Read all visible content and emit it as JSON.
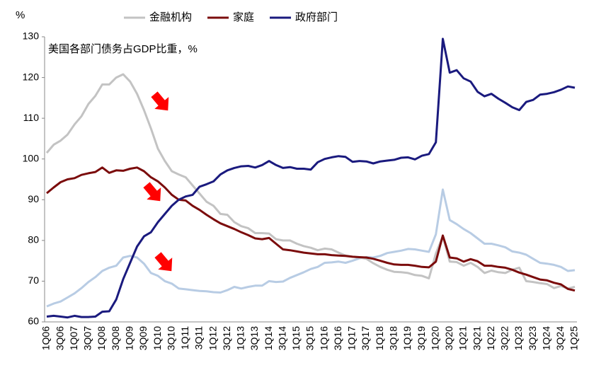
{
  "chart_data": {
    "type": "line",
    "y_label": "%",
    "annotation": "美国各部门债务占GDP比重，%",
    "legend": "top",
    "ylim": [
      60,
      130
    ],
    "yticks": [
      60,
      70,
      80,
      90,
      100,
      110,
      120,
      130
    ],
    "categories": [
      "1Q06",
      null,
      "3Q06",
      null,
      "1Q07",
      null,
      "3Q07",
      null,
      "1Q08",
      null,
      "3Q08",
      null,
      "1Q09",
      null,
      "3Q09",
      null,
      "1Q10",
      null,
      "3Q10",
      null,
      "1Q11",
      null,
      "3Q11",
      null,
      "1Q12",
      null,
      "3Q12",
      null,
      "1Q13",
      null,
      "3Q13",
      null,
      "1Q14",
      null,
      "3Q14",
      null,
      "1Q15",
      null,
      "3Q15",
      null,
      "1Q16",
      null,
      "3Q16",
      null,
      "1Q17",
      null,
      "3Q17",
      null,
      "1Q18",
      null,
      "3Q18",
      null,
      "1Q19",
      null,
      "3Q19",
      null,
      "1Q20",
      null,
      "3Q20",
      null,
      "1Q21",
      null,
      "3Q21",
      null,
      "1Q22",
      null,
      "3Q22",
      null,
      "1Q23",
      null,
      "3Q23",
      null,
      "1Q24",
      null,
      "3Q24",
      null,
      "1Q25"
    ],
    "series": [
      {
        "color": "#b8cce4",
        "values": [
          63.8,
          64.5,
          65,
          66,
          67,
          68.3,
          69.8,
          71,
          72.5,
          73.3,
          73.8,
          75.8,
          76.2,
          75.8,
          74.3,
          72,
          71.3,
          70,
          69.4,
          68.2,
          68,
          67.8,
          67.6,
          67.5,
          67.3,
          67.2,
          67.8,
          68.6,
          68.2,
          68.6,
          68.9,
          68.9,
          70,
          69.8,
          69.9,
          70.8,
          71.5,
          72.2,
          73,
          73.5,
          74.5,
          74.6,
          74.8,
          74.5,
          75,
          75.6,
          75.9,
          75.8,
          76.2,
          76.9,
          77.2,
          77.5,
          77.9,
          77.8,
          77.5,
          77.2,
          81.5,
          92.5,
          85,
          84,
          82.8,
          81.8,
          80.5,
          79.2,
          79.2,
          78.8,
          78.3,
          77.3,
          77,
          76.5,
          75.5,
          74.5,
          74.3,
          74,
          73.5,
          72.5,
          72.7
        ]
      },
      {
        "name": "金融机构",
        "color": "#c3c3c3",
        "values": [
          101.5,
          103.5,
          104.5,
          106,
          108.5,
          110.5,
          113.5,
          115.5,
          118.3,
          118.3,
          120,
          120.8,
          119,
          116,
          112,
          107.5,
          102.5,
          99.5,
          97,
          96.2,
          95.5,
          93.5,
          91.5,
          89.5,
          88.5,
          86.5,
          86.3,
          84.5,
          83.5,
          83,
          81.8,
          81.8,
          81.7,
          80.3,
          80,
          80,
          79.2,
          78.6,
          78.2,
          77.6,
          78,
          77.8,
          77,
          76.3,
          76,
          75.8,
          75.5,
          74.4,
          73.5,
          72.8,
          72.3,
          72.2,
          72,
          71.5,
          71.3,
          70.7,
          76.8,
          81,
          74.8,
          74.7,
          73.8,
          74.5,
          73.5,
          72,
          72.6,
          72.2,
          72,
          72.8,
          73.3,
          70,
          69.8,
          69.5,
          69.3,
          68.3,
          68.8,
          68.2,
          68.6
        ]
      },
      {
        "name": "家庭",
        "color": "#7b0c0c",
        "values": [
          91.6,
          93,
          94.3,
          95,
          95.3,
          96.1,
          96.5,
          96.8,
          97.9,
          96.6,
          97.2,
          97.1,
          97.6,
          97.9,
          97,
          95.5,
          94.5,
          93,
          91.2,
          90,
          89.8,
          88.5,
          87.5,
          86.3,
          85.2,
          84.2,
          83.5,
          82.8,
          82,
          81.3,
          80.5,
          80.3,
          80.6,
          79.2,
          77.8,
          77.6,
          77.3,
          77,
          76.8,
          76.6,
          76.6,
          76.4,
          76.3,
          76.2,
          76,
          75.9,
          75.8,
          75.5,
          75,
          74.5,
          74.1,
          74,
          74,
          73.8,
          73.5,
          73.4,
          74.8,
          81.2,
          75.8,
          75.6,
          74.8,
          75.4,
          74.9,
          73.8,
          73.8,
          73.5,
          73.3,
          72.8,
          72.1,
          71.6,
          71,
          70.4,
          70.2,
          69.6,
          69.2,
          68.1,
          67.7
        ]
      },
      {
        "name": "政府部门",
        "color": "#1a1a7e",
        "values": [
          61.3,
          61.5,
          61.3,
          61.1,
          61.5,
          61.2,
          61.2,
          61.3,
          62.5,
          62.6,
          65.5,
          70.5,
          74.5,
          78.5,
          81,
          82,
          84.5,
          86.5,
          88.5,
          90,
          90.8,
          91.2,
          93.2,
          93.8,
          94.5,
          96.2,
          97.2,
          97.8,
          98.2,
          98.3,
          97.9,
          98.5,
          99.5,
          98.5,
          97.8,
          98,
          97.6,
          97.6,
          97.4,
          99.2,
          100,
          100.4,
          100.7,
          100.5,
          99.3,
          99.5,
          99.4,
          98.9,
          99.4,
          99.6,
          99.8,
          100.3,
          100.4,
          99.9,
          100.8,
          101.2,
          104.1,
          129.5,
          121.2,
          121.8,
          119.8,
          119,
          116.5,
          115.4,
          116,
          114.8,
          113.8,
          112.7,
          112,
          114,
          114.5,
          115.8,
          116,
          116.4,
          117,
          117.8,
          117.5
        ]
      }
    ]
  }
}
